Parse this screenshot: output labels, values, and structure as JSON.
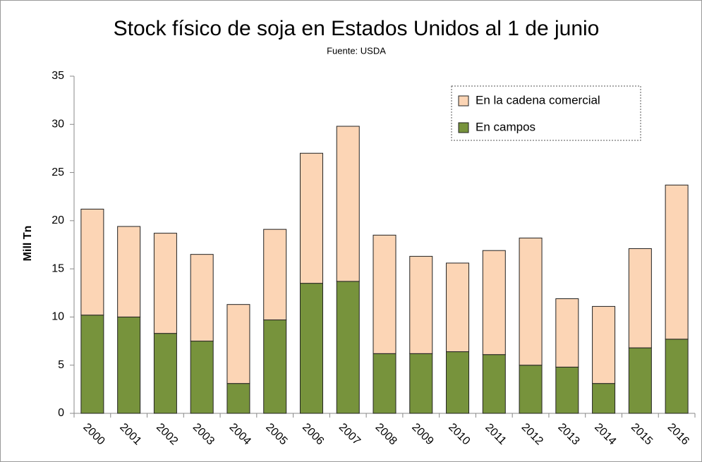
{
  "chart_data": {
    "type": "stacked_bar",
    "title": "Stock físico de soja en Estados Unidos al 1 de junio",
    "subtitle": "Fuente: USDA",
    "y_label": "Mill Tn",
    "categories": [
      "2000",
      "2001",
      "2002",
      "2003",
      "2004",
      "2005",
      "2006",
      "2007",
      "2008",
      "2009",
      "2010",
      "2011",
      "2012",
      "2013",
      "2014",
      "2015",
      "2016"
    ],
    "series": [
      {
        "name": "En campos",
        "color": "#77933c",
        "values": [
          10.2,
          10.0,
          8.3,
          7.5,
          3.1,
          9.7,
          13.5,
          13.7,
          6.2,
          6.2,
          6.4,
          6.1,
          5.0,
          4.8,
          3.1,
          6.8,
          7.7
        ]
      },
      {
        "name": "En la cadena comercial",
        "color": "#fcd5b5",
        "values": [
          11.0,
          9.4,
          10.4,
          9.0,
          8.2,
          9.4,
          13.5,
          16.1,
          12.3,
          10.1,
          9.2,
          10.8,
          13.2,
          7.1,
          8.0,
          10.3,
          16.0
        ]
      }
    ],
    "ylim": [
      0,
      35
    ],
    "yticks": [
      0,
      5,
      10,
      15,
      20,
      25,
      30,
      35
    ],
    "grid": false,
    "legend": "top-right"
  }
}
